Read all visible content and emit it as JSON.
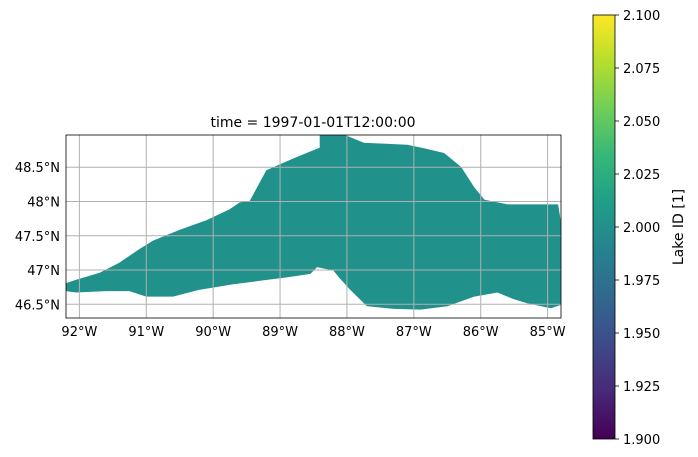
{
  "chart_data": {
    "type": "heatmap",
    "title": "time = 1997-01-01T12:00:00",
    "xlabel": "",
    "ylabel": "",
    "xlim": [
      -92.2,
      -84.8
    ],
    "ylim": [
      46.3,
      48.97
    ],
    "x_ticks": [
      -92,
      -91,
      -90,
      -89,
      -88,
      -87,
      -86,
      -85
    ],
    "x_tick_labels": [
      "92°W",
      "91°W",
      "90°W",
      "89°W",
      "88°W",
      "87°W",
      "86°W",
      "85°W"
    ],
    "y_ticks": [
      46.5,
      47.0,
      47.5,
      48.0,
      48.5
    ],
    "y_tick_labels": [
      "46.5°N",
      "47°N",
      "47.5°N",
      "48°N",
      "48.5°N"
    ],
    "grid": true,
    "field_value": 2.0,
    "field_color": "#21918c",
    "lake_outline_lonlat": [
      [
        -92.2,
        46.8
      ],
      [
        -92.05,
        46.85
      ],
      [
        -91.7,
        46.95
      ],
      [
        -91.4,
        47.1
      ],
      [
        -91.1,
        47.3
      ],
      [
        -90.9,
        47.42
      ],
      [
        -90.5,
        47.58
      ],
      [
        -90.1,
        47.72
      ],
      [
        -89.75,
        47.88
      ],
      [
        -89.6,
        47.98
      ],
      [
        -89.45,
        48.0
      ],
      [
        -89.2,
        48.45
      ],
      [
        -88.8,
        48.62
      ],
      [
        -88.4,
        48.78
      ],
      [
        -88.4,
        48.97
      ],
      [
        -88.05,
        48.97
      ],
      [
        -87.75,
        48.85
      ],
      [
        -87.1,
        48.82
      ],
      [
        -86.85,
        48.77
      ],
      [
        -86.55,
        48.7
      ],
      [
        -86.3,
        48.5
      ],
      [
        -86.1,
        48.2
      ],
      [
        -85.95,
        48.02
      ],
      [
        -85.6,
        47.95
      ],
      [
        -84.85,
        47.95
      ],
      [
        -84.8,
        47.65
      ],
      [
        -84.8,
        46.5
      ],
      [
        -84.95,
        46.45
      ],
      [
        -85.3,
        46.52
      ],
      [
        -85.5,
        46.58
      ],
      [
        -85.75,
        46.68
      ],
      [
        -86.1,
        46.62
      ],
      [
        -86.5,
        46.48
      ],
      [
        -86.9,
        46.43
      ],
      [
        -87.3,
        46.44
      ],
      [
        -87.7,
        46.48
      ],
      [
        -87.95,
        46.72
      ],
      [
        -88.1,
        46.88
      ],
      [
        -88.2,
        47.0
      ],
      [
        -88.45,
        47.05
      ],
      [
        -88.55,
        46.95
      ],
      [
        -88.9,
        46.9
      ],
      [
        -89.3,
        46.85
      ],
      [
        -89.7,
        46.8
      ],
      [
        -90.2,
        46.72
      ],
      [
        -90.6,
        46.62
      ],
      [
        -91.0,
        46.62
      ],
      [
        -91.25,
        46.7
      ],
      [
        -91.6,
        46.7
      ],
      [
        -92.05,
        46.68
      ],
      [
        -92.2,
        46.7
      ]
    ],
    "colorbar": {
      "label": "Lake ID [1]",
      "min": 1.9,
      "max": 2.1,
      "ticks": [
        1.9,
        1.925,
        1.95,
        1.975,
        2.0,
        2.025,
        2.05,
        2.075,
        2.1
      ],
      "tick_labels": [
        "1.900",
        "1.925",
        "1.950",
        "1.975",
        "2.000",
        "2.025",
        "2.050",
        "2.075",
        "2.100"
      ],
      "colormap": [
        "#440154",
        "#482878",
        "#3e4a89",
        "#31688e",
        "#26828e",
        "#1f9e89",
        "#35b779",
        "#6ece58",
        "#b5de2b",
        "#fde725"
      ]
    }
  }
}
